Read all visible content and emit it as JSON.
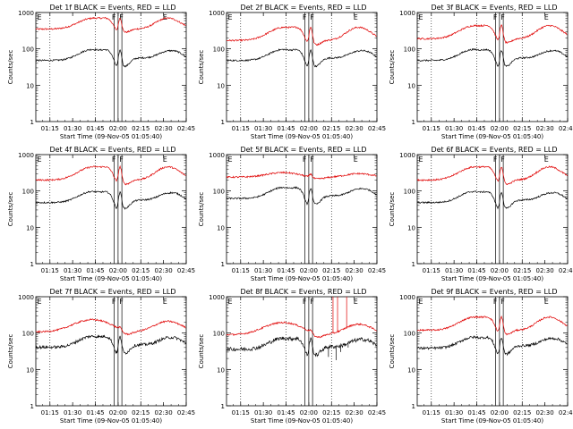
{
  "chart_data": {
    "type": "line",
    "layout": "3x3 grid",
    "ylabel": "Counts/sec",
    "yscale": "log",
    "ylim": [
      1,
      1000
    ],
    "yticks": [
      1,
      10,
      100,
      1000
    ],
    "ytick_labels": [
      "1",
      "10",
      "100",
      "1000"
    ],
    "xlabel": "Start Time (09-Nov-05 01:05:40)",
    "xlim": [
      "01:05:40",
      "02:45:00"
    ],
    "xtick_labels": [
      "01:15",
      "01:30",
      "01:45",
      "02:00",
      "02:15",
      "02:30",
      "02:45"
    ],
    "xtick_minutes": [
      75,
      90,
      105,
      120,
      135,
      150,
      165
    ],
    "dotted_vlines_minutes": [
      75,
      105,
      135
    ],
    "solid_vlines_minutes": [
      117.5,
      120,
      122.5
    ],
    "letters": [
      {
        "text": "F",
        "x_minutes": 117.2
      },
      {
        "text": "F",
        "x_minutes": 122.2
      },
      {
        "text": "E",
        "x_minutes": 151.0
      }
    ],
    "series_colors": {
      "events": "#000000",
      "lld": "#e00000"
    },
    "panels": [
      {
        "title": "Det 1f BLACK = Events, RED = LLD",
        "events_scale": 1.0,
        "lld_scale": 1.0,
        "lld_shape": "high",
        "events_noise": 0.05,
        "glitch": false
      },
      {
        "title": "Det 2f BLACK = Events, RED = LLD",
        "events_scale": 1.0,
        "lld_scale": 0.85,
        "lld_shape": "normal",
        "events_noise": 0.05,
        "glitch": false
      },
      {
        "title": "Det 3f BLACK = Events, RED = LLD",
        "events_scale": 1.0,
        "lld_scale": 0.95,
        "lld_shape": "normal",
        "events_noise": 0.05,
        "glitch": false
      },
      {
        "title": "Det 4f BLACK = Events, RED = LLD",
        "events_scale": 1.0,
        "lld_scale": 1.0,
        "lld_shape": "normal",
        "events_noise": 0.05,
        "glitch": false
      },
      {
        "title": "Det 5f BLACK = Events, RED = LLD",
        "events_scale": 1.3,
        "lld_scale": 1.0,
        "lld_shape": "flat",
        "events_noise": 0.05,
        "glitch": false
      },
      {
        "title": "Det 6f BLACK = Events, RED = LLD",
        "events_scale": 1.0,
        "lld_scale": 1.0,
        "lld_shape": "normal",
        "events_noise": 0.05,
        "glitch": false
      },
      {
        "title": "Det 7f BLACK = Events, RED = LLD",
        "events_scale": 0.85,
        "lld_scale": 0.6,
        "lld_shape": "smooth",
        "events_noise": 0.09,
        "glitch": false
      },
      {
        "title": "Det 8f BLACK = Events, RED = LLD",
        "events_scale": 0.75,
        "lld_scale": 0.5,
        "lld_shape": "smooth",
        "events_noise": 0.12,
        "glitch": true
      },
      {
        "title": "Det 9f BLACK = Events, RED = LLD",
        "events_scale": 0.8,
        "lld_scale": 0.6,
        "lld_shape": "normal",
        "events_noise": 0.08,
        "glitch": false
      }
    ]
  }
}
